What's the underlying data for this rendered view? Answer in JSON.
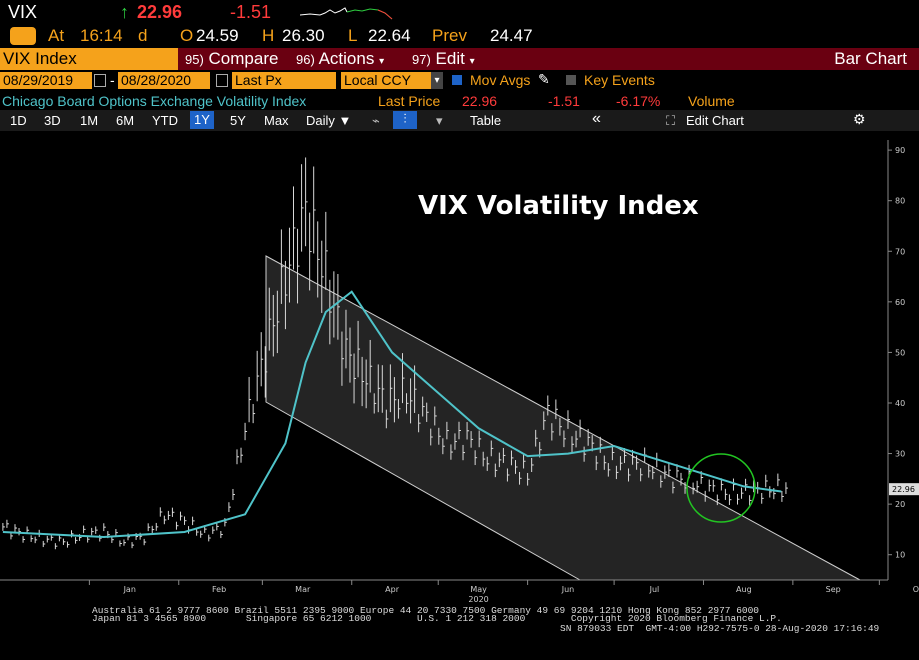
{
  "header": {
    "ticker": "VIX",
    "arrow": "↑",
    "last": "22.96",
    "change": "-1.51",
    "at_label": "At",
    "time": "16:14",
    "d": "d",
    "open_label": "O",
    "open": "24.59",
    "high_label": "H",
    "high": "26.30",
    "low_label": "L",
    "low": "22.64",
    "prev_label": "Prev",
    "prev": "24.47"
  },
  "toolbar": {
    "security": "VIX Index",
    "compare_num": "95)",
    "compare": "Compare",
    "actions_num": "96)",
    "actions": "Actions",
    "edit_num": "97)",
    "edit": "Edit",
    "chart_type": "Bar Chart"
  },
  "settings": {
    "start_date": "08/29/2019",
    "dash": "-",
    "end_date": "08/28/2020",
    "field": "Last Px",
    "currency": "Local CCY",
    "mov_avgs": "Mov Avgs",
    "key_events": "Key Events"
  },
  "legend": {
    "name": "Chicago Board Options Exchange Volatility Index",
    "last_price_label": "Last Price",
    "last_price": "22.96",
    "change": "-1.51",
    "pct": "-6.17%",
    "volume": "Volume"
  },
  "ranges": {
    "items": [
      "1D",
      "3D",
      "1M",
      "6M",
      "YTD",
      "1Y",
      "5Y",
      "Max"
    ],
    "active": "1Y",
    "frequency": "Daily ▼",
    "table": "Table",
    "collapse": "«",
    "edit_chart": "Edit Chart"
  },
  "colors": {
    "accent": "#f5a21b",
    "toolbar_bg": "#6a0011",
    "ma_line": "#4fc3c9",
    "up_green": "#2ecc40",
    "down_red": "#ff3b3b",
    "circle": "#22c422",
    "active_tab": "#1e63c8"
  },
  "chart_data": {
    "type": "bar",
    "title": "VIX Volatility Index",
    "y_ticks": [
      10,
      20,
      30,
      40,
      50,
      60,
      70,
      80,
      90
    ],
    "ylim": [
      5,
      92
    ],
    "x_ticks": [
      "Jan",
      "Feb",
      "Mar",
      "Apr",
      "May",
      "Jun",
      "Jul",
      "Aug",
      "Sep",
      "Oct"
    ],
    "year_label": "2020",
    "last_value_label": "22.96",
    "series": [
      {
        "name": "VIX",
        "style": "high-low bars",
        "x": [
          "2019-12-02",
          "2019-12-09",
          "2019-12-16",
          "2019-12-23",
          "2019-12-30",
          "2020-01-06",
          "2020-01-13",
          "2020-01-20",
          "2020-01-27",
          "2020-02-03",
          "2020-02-10",
          "2020-02-17",
          "2020-02-24",
          "2020-03-02",
          "2020-03-09",
          "2020-03-16",
          "2020-03-23",
          "2020-03-30",
          "2020-04-06",
          "2020-04-13",
          "2020-04-20",
          "2020-04-27",
          "2020-05-04",
          "2020-05-11",
          "2020-05-18",
          "2020-05-25",
          "2020-06-01",
          "2020-06-08",
          "2020-06-15",
          "2020-06-22",
          "2020-06-29",
          "2020-07-06",
          "2020-07-13",
          "2020-07-20",
          "2020-07-27",
          "2020-08-03",
          "2020-08-10",
          "2020-08-17",
          "2020-08-24"
        ],
        "y": [
          15.5,
          14.0,
          13.0,
          12.5,
          14.0,
          14.5,
          12.5,
          13.5,
          18.0,
          16.5,
          14.0,
          15.5,
          35.0,
          50.0,
          65.0,
          78.0,
          65.0,
          50.0,
          45.0,
          40.0,
          42.0,
          37.0,
          32.0,
          33.0,
          29.0,
          28.0,
          26.0,
          38.0,
          34.0,
          32.0,
          28.0,
          28.0,
          27.5,
          25.5,
          24.5,
          23.0,
          22.0,
          22.5,
          23.0
        ]
      },
      {
        "name": "Mov Avg",
        "x": [
          "2019-12-02",
          "2020-01-06",
          "2020-02-03",
          "2020-02-24",
          "2020-03-09",
          "2020-03-16",
          "2020-03-23",
          "2020-04-01",
          "2020-04-15",
          "2020-05-01",
          "2020-05-15",
          "2020-06-01",
          "2020-06-15",
          "2020-07-01",
          "2020-07-15",
          "2020-08-01",
          "2020-08-15",
          "2020-08-28"
        ],
        "y": [
          14.5,
          13.5,
          14.5,
          18.0,
          32.0,
          48.0,
          58.0,
          62.0,
          50.0,
          42.0,
          35.0,
          29.5,
          30.0,
          31.5,
          29.0,
          26.0,
          23.5,
          22.5
        ]
      }
    ]
  },
  "footer": {
    "line1": "Australia 61 2 9777 8600 Brazil 5511 2395 9000 Europe 44 20 7330 7500 Germany 49 69 9204 1210 Hong Kong 852 2977 6000",
    "line2": "Japan 81 3 4565 8900       Singapore 65 6212 1000        U.S. 1 212 318 2000        Copyright 2020 Bloomberg Finance L.P.",
    "line3": "SN 879033 EDT  GMT-4:00 H292-7575-0 28-Aug-2020 17:16:49"
  }
}
